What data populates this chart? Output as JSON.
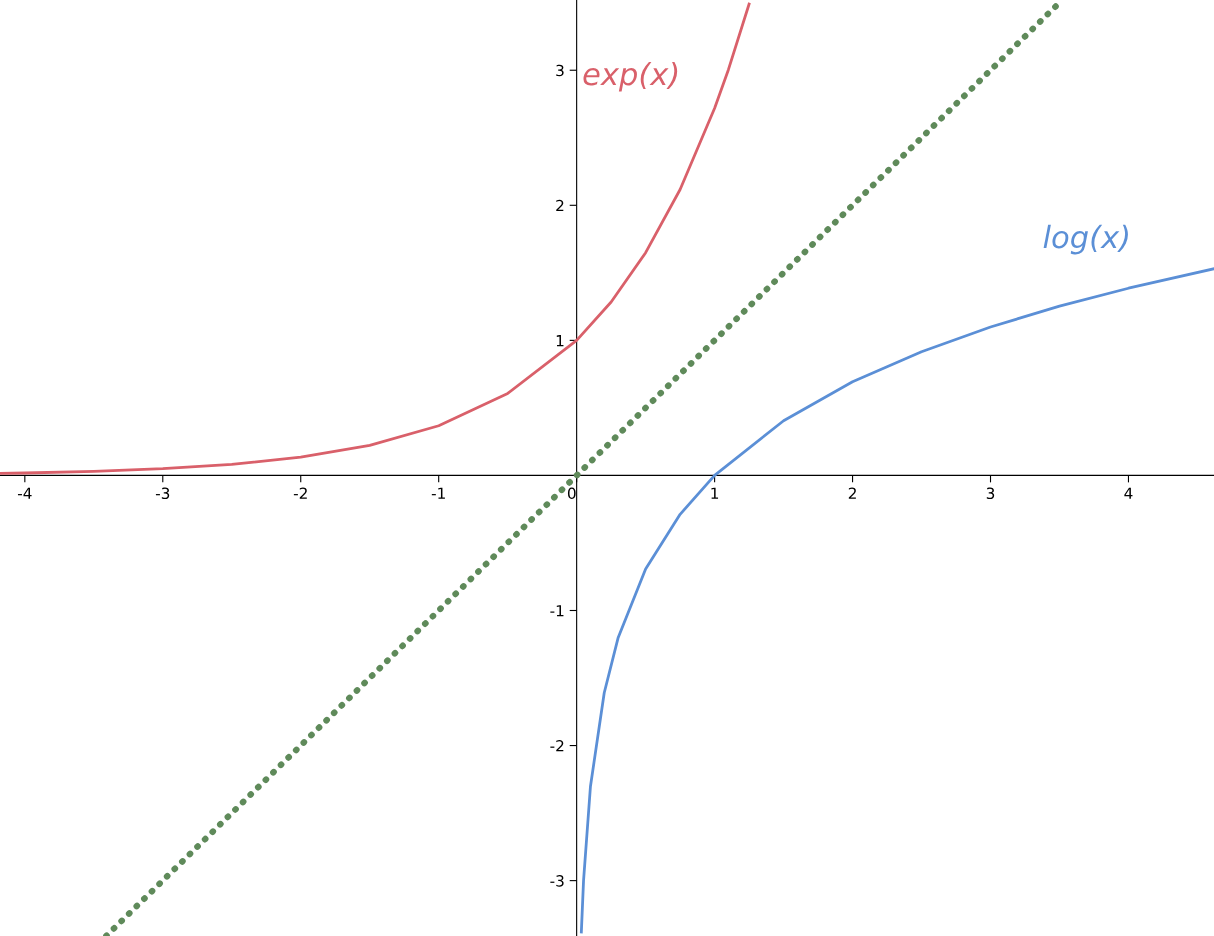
{
  "chart_data": {
    "type": "line",
    "xlim": [
      -4.18,
      4.62
    ],
    "ylim": [
      -3.41,
      3.52
    ],
    "xticks": [
      -4,
      -3,
      -2,
      -1,
      0,
      1,
      2,
      3,
      4
    ],
    "yticks": [
      -3,
      -2,
      -1,
      1,
      2,
      3
    ],
    "grid": false,
    "legend": false,
    "series": [
      {
        "name": "exp(x)",
        "color": "#d9606a",
        "line_style": "solid",
        "x": [
          -4.18,
          -4,
          -3.5,
          -3,
          -2.5,
          -2,
          -1.5,
          -1,
          -0.5,
          0,
          0.25,
          0.5,
          0.75,
          1,
          1.1,
          1.25
        ],
        "values": [
          0.015,
          0.018,
          0.03,
          0.05,
          0.082,
          0.135,
          0.223,
          0.368,
          0.607,
          1,
          1.284,
          1.649,
          2.117,
          2.718,
          3.004,
          3.49
        ]
      },
      {
        "name": "log(x)",
        "color": "#5b8fd6",
        "line_style": "solid",
        "x": [
          0.034,
          0.05,
          0.1,
          0.2,
          0.3,
          0.5,
          0.75,
          1,
          1.5,
          2,
          2.5,
          3,
          3.5,
          4,
          4.62
        ],
        "values": [
          -3.38,
          -3.0,
          -2.303,
          -1.609,
          -1.204,
          -0.693,
          -0.288,
          0,
          0.405,
          0.693,
          0.916,
          1.099,
          1.253,
          1.386,
          1.53
        ]
      },
      {
        "color": "#5f8a5a",
        "line_style": "dotted",
        "x": [
          -3.41,
          3.52
        ],
        "values": [
          -3.41,
          3.52
        ]
      }
    ]
  }
}
